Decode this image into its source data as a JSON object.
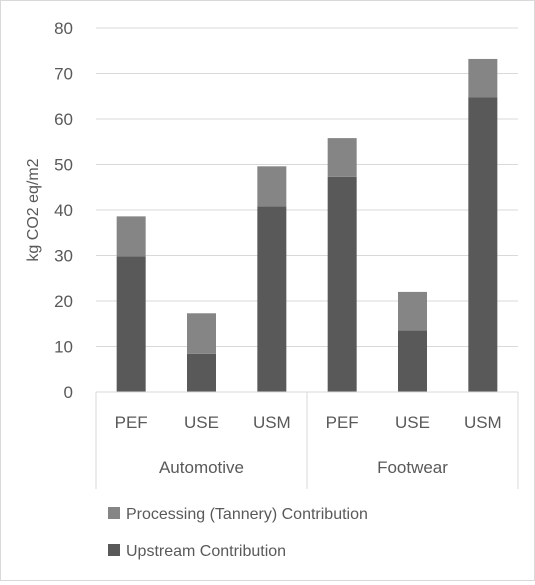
{
  "chart_data": {
    "type": "bar",
    "stacked": true,
    "ylabel": "kg CO2 eq/m2",
    "ylim": [
      0,
      80
    ],
    "yticks": [
      0,
      10,
      20,
      30,
      40,
      50,
      60,
      70,
      80
    ],
    "grid": true,
    "legend_position": "bottom",
    "groups": [
      {
        "label": "Automotive",
        "categories": [
          "PEF",
          "USE",
          "USM"
        ]
      },
      {
        "label": "Footwear",
        "categories": [
          "PEF",
          "USE",
          "USM"
        ]
      }
    ],
    "series": [
      {
        "name": "Upstream Contribution",
        "color": "#595959",
        "values": [
          29.8,
          8.4,
          40.8,
          47.3,
          13.5,
          64.8
        ]
      },
      {
        "name": "Processing (Tannery) Contribution",
        "color": "#858585",
        "values": [
          8.8,
          8.9,
          8.8,
          8.5,
          8.5,
          8.4
        ]
      }
    ],
    "legend_order": [
      "Processing (Tannery) Contribution",
      "Upstream Contribution"
    ]
  }
}
